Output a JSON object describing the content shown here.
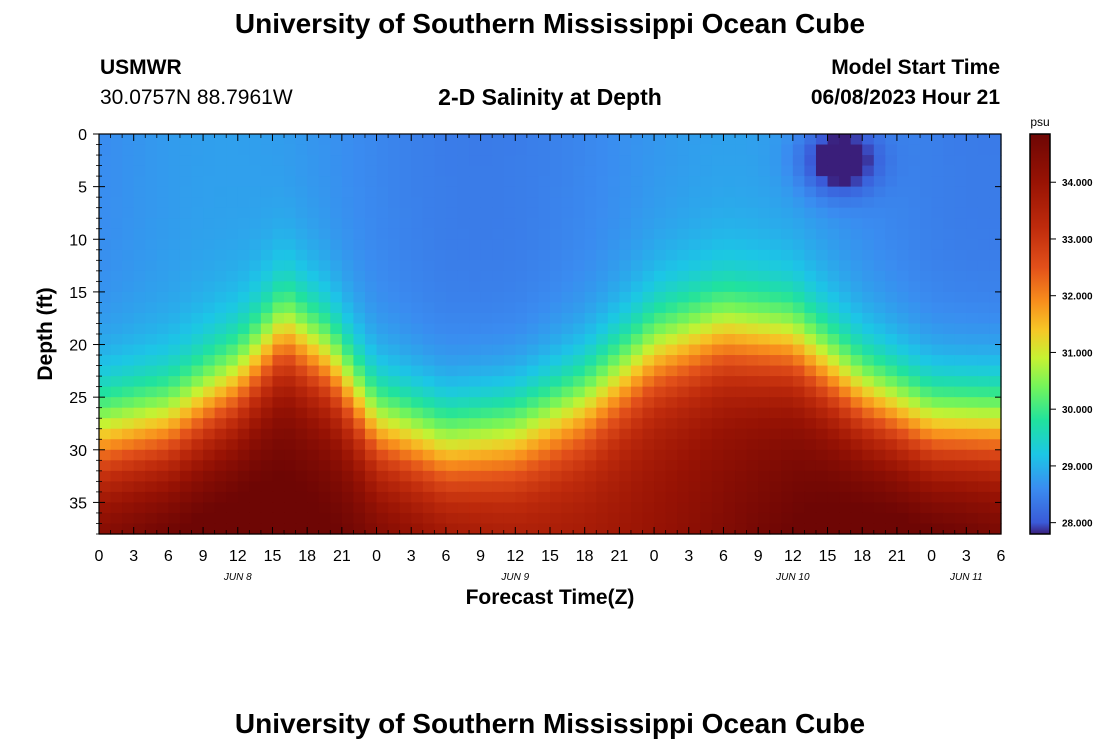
{
  "header": {
    "title": "University of Southern Mississippi Ocean Cube",
    "station": "USMWR",
    "coords": "30.0757N  88.7961W",
    "subtitle": "2-D Salinity at Depth",
    "model_start_label": "Model Start Time",
    "model_start_value": "06/08/2023 Hour 21"
  },
  "footer": {
    "title": "University of Southern Mississippi Ocean Cube"
  },
  "chart_data": {
    "type": "heatmap",
    "title": "2-D Salinity at Depth",
    "xlabel": "Forecast Time(Z)",
    "ylabel": "Depth (ft)",
    "x_ticks": [
      "0",
      "3",
      "6",
      "9",
      "12",
      "15",
      "18",
      "21",
      "0",
      "3",
      "6",
      "9",
      "12",
      "15",
      "18",
      "21",
      "0",
      "3",
      "6",
      "9",
      "12",
      "15",
      "18",
      "21",
      "0",
      "3",
      "6"
    ],
    "x_range_hours": [
      0,
      78
    ],
    "day_labels": [
      {
        "label": "JUN 8",
        "hour": 12
      },
      {
        "label": "JUN 9",
        "hour": 36
      },
      {
        "label": "JUN 10",
        "hour": 60
      },
      {
        "label": "JUN 11",
        "hour": 75
      }
    ],
    "y_ticks": [
      0,
      5,
      10,
      15,
      20,
      25,
      30,
      35
    ],
    "y_range_ft": [
      0,
      38
    ],
    "y_inverted": true,
    "colorbar": {
      "unit": "psu",
      "range": [
        27.8,
        34.85
      ],
      "ticks": [
        "28.000",
        "29.000",
        "30.000",
        "31.000",
        "32.000",
        "33.000",
        "34.000"
      ],
      "tick_values": [
        28,
        29,
        30,
        31,
        32,
        33,
        34
      ],
      "stops": [
        {
          "v": 27.8,
          "c": "#3a1e7a"
        },
        {
          "v": 28.0,
          "c": "#3a5ad8"
        },
        {
          "v": 28.6,
          "c": "#3a8cf0"
        },
        {
          "v": 29.2,
          "c": "#1cc6e6"
        },
        {
          "v": 29.8,
          "c": "#20e29e"
        },
        {
          "v": 30.4,
          "c": "#74f45a"
        },
        {
          "v": 30.9,
          "c": "#c6f232"
        },
        {
          "v": 31.4,
          "c": "#f6c626"
        },
        {
          "v": 31.9,
          "c": "#f88e1c"
        },
        {
          "v": 32.5,
          "c": "#e2501a"
        },
        {
          "v": 33.2,
          "c": "#bf2b0c"
        },
        {
          "v": 34.0,
          "c": "#981304"
        },
        {
          "v": 34.85,
          "c": "#6e0604"
        }
      ]
    },
    "surface_salinity_range": [
      28.4,
      28.8
    ],
    "bottom_salinity_range": [
      33.2,
      34.6
    ],
    "halocline_depth_ft": {
      "x_hours": [
        0,
        6,
        12,
        16,
        20,
        24,
        30,
        36,
        42,
        48,
        54,
        60,
        66,
        72,
        78
      ],
      "depth": [
        29,
        28,
        24,
        19,
        22,
        28,
        30,
        29,
        26,
        21,
        19,
        20,
        25,
        28,
        28
      ]
    },
    "low_salinity_patch": {
      "hour": 64,
      "depth_ft": 2.5,
      "min_salinity": 27.8
    }
  }
}
